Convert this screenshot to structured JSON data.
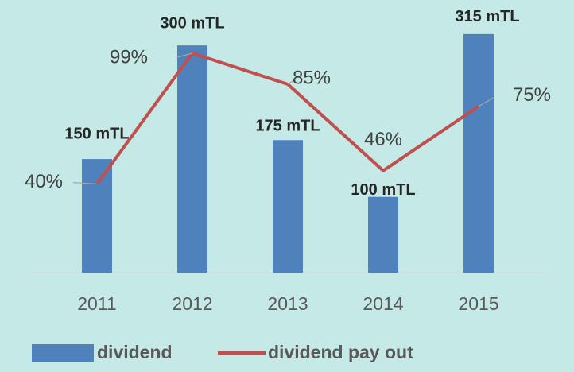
{
  "chart_data": {
    "type": "bar+line",
    "categories": [
      "2011",
      "2012",
      "2013",
      "2014",
      "2015"
    ],
    "series": [
      {
        "name": "dividend",
        "type": "bar",
        "color": "#4f81bd",
        "values": [
          150,
          300,
          175,
          100,
          315
        ],
        "value_labels": [
          "150 mTL",
          "300 mTL",
          "175 mTL",
          "100 mTL",
          "315 mTL"
        ]
      },
      {
        "name": "dividend pay out",
        "type": "line",
        "axis": "y2",
        "color": "#c0504d",
        "values": [
          40,
          99,
          85,
          46,
          75
        ],
        "value_labels": [
          "40%",
          "99%",
          "85%",
          "46%",
          "75%"
        ]
      }
    ],
    "ylim": [
      0,
      360
    ],
    "y2lim": [
      0,
      123
    ]
  }
}
